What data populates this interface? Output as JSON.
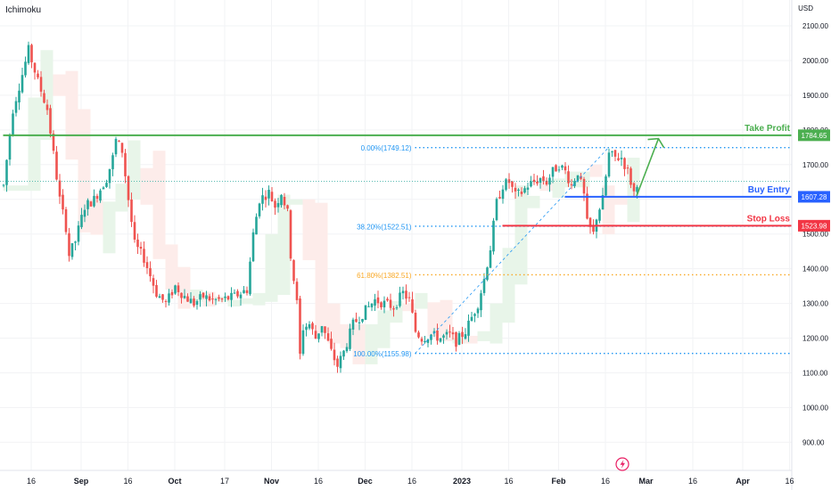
{
  "indicator": "Ichimoku",
  "currency": "USD",
  "colors": {
    "up": "#26a69a",
    "down": "#ef5350",
    "take_profit": "#4caf50",
    "buy_entry": "#2962ff",
    "stop_loss": "#f23645",
    "fib": "#2196f3",
    "fib_618": "#f9a825",
    "grid": "#f2f3f5",
    "text": "#131722",
    "cloud_bull": "#e8f5e9",
    "cloud_bear": "#fdecea"
  },
  "icons": {
    "bottom_marker": "lightning-icon"
  },
  "chart_data": {
    "type": "candlestick",
    "y_axis": {
      "range": [
        860,
        2170
      ],
      "ticks": [
        "900.00",
        "1000.00",
        "1100.00",
        "1200.00",
        "1300.00",
        "1400.00",
        "1500.00",
        "1600.00",
        "1700.00",
        "1800.00",
        "1900.00",
        "2000.00",
        "2100.00"
      ]
    },
    "x_axis": {
      "ticks": [
        {
          "label": "16",
          "day": 0
        },
        {
          "label": "Sep",
          "day": 16
        },
        {
          "label": "16",
          "day": 31
        },
        {
          "label": "Oct",
          "day": 46
        },
        {
          "label": "17",
          "day": 62
        },
        {
          "label": "Nov",
          "day": 77
        },
        {
          "label": "16",
          "day": 92
        },
        {
          "label": "Dec",
          "day": 107
        },
        {
          "label": "16",
          "day": 122
        },
        {
          "label": "2023",
          "day": 138
        },
        {
          "label": "16",
          "day": 153
        },
        {
          "label": "Feb",
          "day": 169
        },
        {
          "label": "16",
          "day": 184
        },
        {
          "label": "Mar",
          "day": 197
        },
        {
          "label": "16",
          "day": 212
        },
        {
          "label": "Apr",
          "day": 228
        },
        {
          "label": "16",
          "day": 243
        }
      ]
    },
    "price_path": [
      [
        -9,
        1640
      ],
      [
        -6,
        1860
      ],
      [
        -3,
        1960
      ],
      [
        -1,
        2030
      ],
      [
        2,
        1940
      ],
      [
        5,
        1860
      ],
      [
        7,
        1730
      ],
      [
        9,
        1600
      ],
      [
        11,
        1520
      ],
      [
        12,
        1440
      ],
      [
        14,
        1480
      ],
      [
        17,
        1580
      ],
      [
        20,
        1600
      ],
      [
        24,
        1660
      ],
      [
        26,
        1720
      ],
      [
        27,
        1770
      ],
      [
        29,
        1740
      ],
      [
        31,
        1600
      ],
      [
        33,
        1470
      ],
      [
        36,
        1430
      ],
      [
        40,
        1330
      ],
      [
        43,
        1300
      ],
      [
        46,
        1350
      ],
      [
        49,
        1320
      ],
      [
        52,
        1300
      ],
      [
        55,
        1320
      ],
      [
        58,
        1310
      ],
      [
        61,
        1310
      ],
      [
        65,
        1320
      ],
      [
        69,
        1340
      ],
      [
        71,
        1500
      ],
      [
        73,
        1600
      ],
      [
        76,
        1620
      ],
      [
        78,
        1580
      ],
      [
        80,
        1620
      ],
      [
        82,
        1560
      ],
      [
        83,
        1440
      ],
      [
        85,
        1300
      ],
      [
        86,
        1150
      ],
      [
        87,
        1230
      ],
      [
        89,
        1240
      ],
      [
        91,
        1200
      ],
      [
        93,
        1240
      ],
      [
        96,
        1160
      ],
      [
        98,
        1120
      ],
      [
        100,
        1160
      ],
      [
        103,
        1240
      ],
      [
        106,
        1270
      ],
      [
        110,
        1310
      ],
      [
        113,
        1300
      ],
      [
        116,
        1290
      ],
      [
        119,
        1330
      ],
      [
        121,
        1310
      ],
      [
        123,
        1220
      ],
      [
        125,
        1200
      ],
      [
        128,
        1210
      ],
      [
        131,
        1200
      ],
      [
        134,
        1210
      ],
      [
        136,
        1190
      ],
      [
        139,
        1220
      ],
      [
        141,
        1260
      ],
      [
        143,
        1300
      ],
      [
        145,
        1370
      ],
      [
        147,
        1460
      ],
      [
        149,
        1590
      ],
      [
        151,
        1640
      ],
      [
        153,
        1650
      ],
      [
        155,
        1610
      ],
      [
        157,
        1620
      ],
      [
        159,
        1640
      ],
      [
        161,
        1650
      ],
      [
        163,
        1660
      ],
      [
        165,
        1650
      ],
      [
        167,
        1680
      ],
      [
        169,
        1700
      ],
      [
        171,
        1680
      ],
      [
        173,
        1640
      ],
      [
        175,
        1680
      ],
      [
        177,
        1610
      ],
      [
        178,
        1530
      ],
      [
        180,
        1500
      ],
      [
        181,
        1550
      ],
      [
        183,
        1600
      ],
      [
        185,
        1730
      ],
      [
        187,
        1720
      ],
      [
        189,
        1720
      ],
      [
        191,
        1680
      ],
      [
        193,
        1620
      ],
      [
        194,
        1650
      ]
    ],
    "levels": [
      {
        "label": "Take Profit",
        "value": 1784.65,
        "price": "1784.65"
      },
      {
        "label": "Buy Entry",
        "value": 1607.28,
        "price": "1607.28"
      },
      {
        "label": "Stop Loss",
        "value": 1523.98,
        "price": "1523.98"
      }
    ],
    "fibonacci": [
      {
        "text": "0.00%(1749.12)",
        "value": 1749.12
      },
      {
        "text": "38.20%(1522.51)",
        "value": 1522.51
      },
      {
        "text": "61.80%(1382.51)",
        "value": 1382.51
      },
      {
        "text": "100.00%(1155.98)",
        "value": 1155.98
      }
    ],
    "fib_trendline": [
      [
        123,
        1155.98
      ],
      [
        185,
        1749.12
      ]
    ],
    "current_price": 1652,
    "forecast_arrow": [
      [
        194,
        1610
      ],
      [
        201,
        1775
      ]
    ]
  }
}
